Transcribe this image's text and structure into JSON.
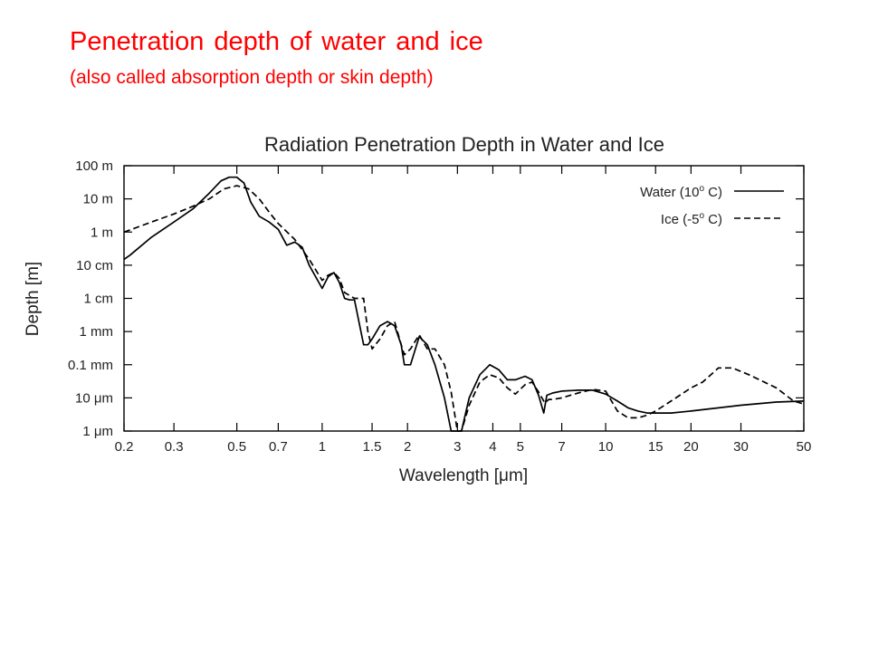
{
  "slide": {
    "title": "Penetration depth of water and ice",
    "subtitle": "(also called absorption depth or skin depth)"
  },
  "colors": {
    "title": "#ff0000",
    "ink": "#000000"
  },
  "chart_data": {
    "type": "line",
    "title": "Radiation Penetration Depth in Water and Ice",
    "xlabel": "Wavelength [μm]",
    "ylabel": "Depth [m]",
    "x_scale": "log",
    "y_scale": "log",
    "xlim": [
      0.2,
      50
    ],
    "ylim": [
      1e-06,
      100
    ],
    "grid": false,
    "legend_position": "top-right",
    "x_ticks": [
      {
        "value": 0.2,
        "label": "0.2"
      },
      {
        "value": 0.3,
        "label": "0.3"
      },
      {
        "value": 0.5,
        "label": "0.5"
      },
      {
        "value": 0.7,
        "label": "0.7"
      },
      {
        "value": 1,
        "label": "1"
      },
      {
        "value": 1.5,
        "label": "1.5"
      },
      {
        "value": 2,
        "label": "2"
      },
      {
        "value": 3,
        "label": "3"
      },
      {
        "value": 4,
        "label": "4"
      },
      {
        "value": 5,
        "label": "5"
      },
      {
        "value": 7,
        "label": "7"
      },
      {
        "value": 10,
        "label": "10"
      },
      {
        "value": 15,
        "label": "15"
      },
      {
        "value": 20,
        "label": "20"
      },
      {
        "value": 30,
        "label": "30"
      },
      {
        "value": 50,
        "label": "50"
      }
    ],
    "y_ticks": [
      {
        "value": 1e-06,
        "label": "1 μm"
      },
      {
        "value": 1e-05,
        "label": "10 μm"
      },
      {
        "value": 0.0001,
        "label": "0.1 mm"
      },
      {
        "value": 0.001,
        "label": "1 mm"
      },
      {
        "value": 0.01,
        "label": "1 cm"
      },
      {
        "value": 0.1,
        "label": "10 cm"
      },
      {
        "value": 1,
        "label": "1 m"
      },
      {
        "value": 10,
        "label": "10 m"
      },
      {
        "value": 100,
        "label": "100 m"
      }
    ],
    "series": [
      {
        "name": "Water (10° C)",
        "legend_text": "Water (10",
        "legend_sup": "o",
        "legend_tail": " C)",
        "style": "solid",
        "x": [
          0.2,
          0.21,
          0.25,
          0.3,
          0.35,
          0.4,
          0.44,
          0.47,
          0.5,
          0.53,
          0.56,
          0.6,
          0.65,
          0.7,
          0.75,
          0.8,
          0.85,
          0.9,
          1.0,
          1.05,
          1.1,
          1.15,
          1.2,
          1.25,
          1.3,
          1.4,
          1.45,
          1.5,
          1.6,
          1.7,
          1.8,
          1.9,
          1.95,
          2.05,
          2.2,
          2.35,
          2.5,
          2.7,
          2.85,
          3.0,
          3.1,
          3.3,
          3.6,
          3.9,
          4.2,
          4.5,
          4.8,
          5.2,
          5.5,
          5.8,
          6.05,
          6.2,
          6.5,
          7.0,
          8.0,
          9.0,
          10.0,
          11.0,
          12.0,
          13.0,
          14.0,
          15.0,
          17.0,
          20.0,
          25.0,
          30.0,
          40.0,
          50.0
        ],
        "y": [
          0.15,
          0.2,
          0.7,
          2,
          5,
          15,
          35,
          45,
          45,
          30,
          8,
          3,
          2,
          1.2,
          0.4,
          0.5,
          0.35,
          0.1,
          0.02,
          0.045,
          0.06,
          0.03,
          0.01,
          0.009,
          0.009,
          0.0004,
          0.0004,
          0.0006,
          0.0015,
          0.002,
          0.0015,
          0.0004,
          0.0001,
          0.0001,
          0.0007,
          0.0004,
          0.0001,
          1e-05,
          1e-06,
          8e-07,
          1e-06,
          1e-05,
          5e-05,
          0.0001,
          7e-05,
          3.5e-05,
          3.5e-05,
          4.5e-05,
          3.5e-05,
          1.2e-05,
          3.5e-06,
          1.2e-05,
          1.4e-05,
          1.6e-05,
          1.7e-05,
          1.7e-05,
          1.3e-05,
          8e-06,
          5e-06,
          4e-06,
          3.5e-06,
          3.5e-06,
          3.5e-06,
          4e-06,
          5e-06,
          6e-06,
          7.5e-06,
          8e-06
        ]
      },
      {
        "name": "Ice (-5° C)",
        "legend_text": "Ice (-5",
        "legend_sup": "o",
        "legend_tail": " C)",
        "style": "dashed",
        "x": [
          0.2,
          0.25,
          0.3,
          0.35,
          0.4,
          0.45,
          0.5,
          0.55,
          0.6,
          0.65,
          0.7,
          0.8,
          0.9,
          1.0,
          1.05,
          1.1,
          1.15,
          1.2,
          1.3,
          1.4,
          1.45,
          1.5,
          1.6,
          1.7,
          1.8,
          1.9,
          1.95,
          2.05,
          2.2,
          2.35,
          2.5,
          2.7,
          2.85,
          3.0,
          3.1,
          3.3,
          3.6,
          3.9,
          4.2,
          4.5,
          4.8,
          5.2,
          5.5,
          5.8,
          6.1,
          6.3,
          6.5,
          7.0,
          8.0,
          9.0,
          10.0,
          11.0,
          12.0,
          13.0,
          14.0,
          15.0,
          17.0,
          20.0,
          22.0,
          25.0,
          28.0,
          32.0,
          40.0,
          46.0,
          50.0
        ],
        "y": [
          1,
          2,
          3.5,
          6,
          10,
          20,
          25,
          20,
          10,
          4,
          1.8,
          0.6,
          0.15,
          0.035,
          0.05,
          0.06,
          0.04,
          0.015,
          0.01,
          0.01,
          0.001,
          0.0003,
          0.0006,
          0.0015,
          0.002,
          0.0004,
          0.0002,
          0.0003,
          0.0008,
          0.0003,
          0.0003,
          0.0001,
          1.5e-05,
          8e-07,
          1e-06,
          6e-06,
          3e-05,
          5e-05,
          4e-05,
          2e-05,
          1.3e-05,
          2.5e-05,
          3e-05,
          1.5e-05,
          7e-06,
          9e-06,
          9e-06,
          1e-05,
          1.4e-05,
          1.8e-05,
          1.6e-05,
          4e-06,
          2.5e-06,
          2.5e-06,
          3e-06,
          4e-06,
          8e-06,
          2e-05,
          3e-05,
          8e-05,
          8e-05,
          5e-05,
          2e-05,
          8e-06,
          6.5e-06
        ]
      }
    ]
  }
}
